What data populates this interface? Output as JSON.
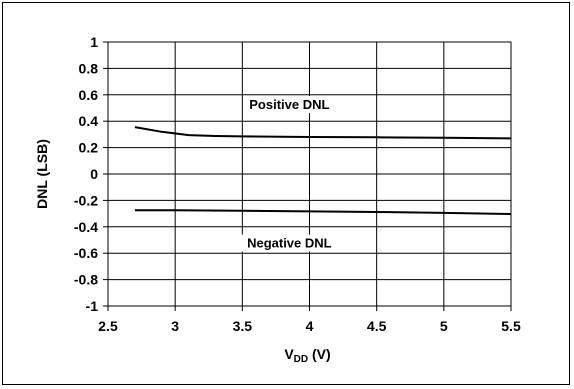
{
  "chart_data": {
    "type": "line",
    "xlabel_main": "V",
    "xlabel_sub": "DD",
    "xlabel_unit": " (V)",
    "ylabel": "DNL (LSB)",
    "xlim": [
      2.5,
      5.5
    ],
    "ylim": [
      -1,
      1
    ],
    "x_ticks": [
      "2.5",
      "3",
      "3.5",
      "4",
      "4.5",
      "5",
      "5.5"
    ],
    "y_ticks": [
      "1",
      "0.8",
      "0.6",
      "0.4",
      "0.2",
      "0",
      "-0.2",
      "-0.4",
      "-0.6",
      "-0.8",
      "-1"
    ],
    "grid": true,
    "legend": "none",
    "series": [
      {
        "name": "Positive DNL",
        "x": [
          2.7,
          2.9,
          3.1,
          3.3,
          3.5,
          4.0,
          4.5,
          5.0,
          5.5
        ],
        "y": [
          0.355,
          0.32,
          0.295,
          0.288,
          0.285,
          0.28,
          0.278,
          0.275,
          0.27
        ]
      },
      {
        "name": "Negative DNL",
        "x": [
          2.7,
          3.0,
          3.5,
          4.0,
          4.5,
          5.0,
          5.5
        ],
        "y": [
          -0.275,
          -0.275,
          -0.278,
          -0.283,
          -0.288,
          -0.295,
          -0.303
        ]
      }
    ],
    "annotations": [
      {
        "text": "Positive DNL",
        "series": 0
      },
      {
        "text": "Negative DNL",
        "series": 1
      }
    ]
  }
}
